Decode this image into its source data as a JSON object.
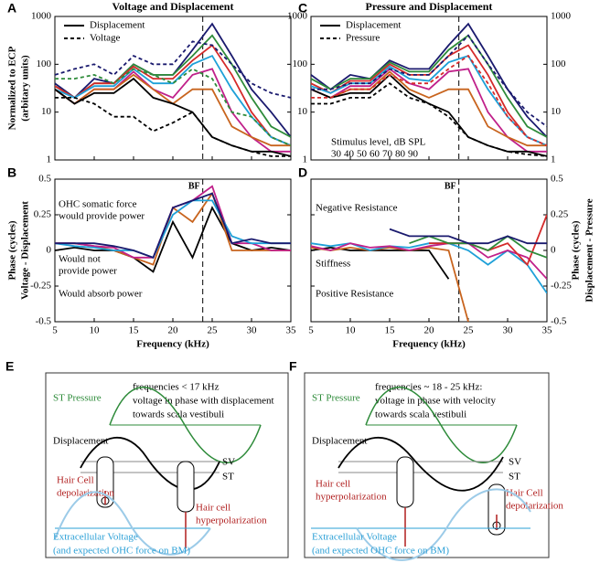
{
  "chart_data": [
    {
      "type": "line",
      "panel": "A",
      "title": "Voltage and Displacement",
      "y_label": [
        "Normalized to ECP",
        "(arbitary units)"
      ],
      "log_y": true,
      "y_axis_side": "left",
      "xlim": [
        5,
        35
      ],
      "ylim": [
        1,
        1000
      ],
      "xticks": [
        5,
        10,
        15,
        20,
        25,
        30,
        35
      ],
      "yticks": [
        1,
        10,
        100,
        1000
      ],
      "x": [
        5,
        7.5,
        10,
        12.5,
        15,
        17.5,
        20,
        22.5,
        25,
        27.5,
        30,
        32.5,
        35
      ],
      "bf": 23.8,
      "legend": [
        {
          "label": "Displacement",
          "dash": "solid"
        },
        {
          "label": "Voltage",
          "dash": "dashed"
        }
      ],
      "series": [
        {
          "color": "#1a1a6e",
          "dash": "solid",
          "values": [
            40,
            20,
            50,
            40,
            100,
            60,
            60,
            200,
            700,
            150,
            30,
            10,
            3
          ]
        },
        {
          "color": "#2e8b3a",
          "dash": "solid",
          "values": [
            35,
            20,
            40,
            40,
            100,
            60,
            60,
            150,
            400,
            100,
            20,
            5,
            3
          ]
        },
        {
          "color": "#d42a2a",
          "dash": "solid",
          "values": [
            35,
            20,
            40,
            40,
            90,
            50,
            50,
            120,
            250,
            60,
            10,
            3,
            2
          ]
        },
        {
          "color": "#1ea0d8",
          "dash": "solid",
          "values": [
            30,
            20,
            35,
            35,
            80,
            40,
            40,
            100,
            150,
            30,
            8,
            3,
            2
          ]
        },
        {
          "color": "#c0208a",
          "dash": "solid",
          "values": [
            30,
            15,
            30,
            30,
            70,
            30,
            20,
            60,
            80,
            10,
            3,
            1.5,
            1.5
          ]
        },
        {
          "color": "#c8641e",
          "dash": "solid",
          "values": [
            30,
            15,
            30,
            30,
            60,
            30,
            15,
            30,
            30,
            5,
            3,
            2,
            2
          ]
        },
        {
          "color": "#000000",
          "dash": "solid",
          "values": [
            30,
            15,
            25,
            25,
            50,
            20,
            15,
            10,
            3,
            2,
            1.5,
            1.5,
            1.2
          ]
        },
        {
          "color": "#1a1a6e",
          "dash": "dashed",
          "values": [
            60,
            80,
            100,
            60,
            150,
            100,
            100,
            300,
            250,
            100,
            40,
            25,
            20
          ]
        },
        {
          "color": "#2e8b3a",
          "dash": "dashed",
          "values": [
            50,
            50,
            60,
            40,
            80,
            60,
            40,
            80,
            50,
            10,
            8,
            3,
            2
          ]
        },
        {
          "color": "#000000",
          "dash": "dashed",
          "values": [
            20,
            20,
            15,
            8,
            8,
            4,
            6,
            10,
            3,
            2,
            1.5,
            1.2,
            1.2
          ]
        }
      ]
    },
    {
      "type": "line",
      "panel": "B",
      "y_label": [
        "Phase (cycles)",
        "Voltage - Displacement"
      ],
      "x_label": "Frequency (kHz)",
      "log_y": false,
      "y_axis_side": "left",
      "xlim": [
        5,
        35
      ],
      "ylim": [
        -0.5,
        0.5
      ],
      "xticks": [
        5,
        10,
        15,
        20,
        25,
        30,
        35
      ],
      "yticks": [
        -0.5,
        -0.25,
        0,
        0.25,
        0.5
      ],
      "x": [
        5,
        7.5,
        10,
        12.5,
        15,
        17.5,
        20,
        22.5,
        25,
        27.5,
        30,
        32.5,
        35
      ],
      "bf": 23.8,
      "bf_label": "BF",
      "annotations": [
        "OHC somatic force",
        "would provide power",
        "Would not",
        "provide power",
        "Would absorb power"
      ],
      "series": [
        {
          "color": "#000000",
          "dash": "solid",
          "values": [
            0,
            0.02,
            0,
            0,
            -0.05,
            -0.15,
            0.2,
            -0.05,
            0.3,
            0.05,
            0,
            0.02,
            0
          ]
        },
        {
          "color": "#c8641e",
          "dash": "solid",
          "values": [
            0.05,
            0.05,
            0.03,
            0,
            -0.05,
            -0.1,
            0.3,
            0.2,
            0.4,
            0,
            0,
            0,
            0
          ]
        },
        {
          "color": "#c0208a",
          "dash": "solid",
          "values": [
            0.05,
            0.05,
            0.03,
            0.02,
            -0.05,
            -0.05,
            0.3,
            0.35,
            0.45,
            0.05,
            0.05,
            0,
            0
          ]
        },
        {
          "color": "#1ea0d8",
          "dash": "solid",
          "values": [
            0.05,
            0.03,
            0.02,
            0,
            0,
            -0.05,
            0.25,
            0.35,
            0.35,
            0.1,
            0.05,
            0.05,
            0.05
          ]
        },
        {
          "color": "#1a1a6e",
          "dash": "solid",
          "values": [
            0.05,
            0.05,
            0.05,
            0.03,
            0,
            -0.05,
            0.3,
            0.35,
            0.4,
            0.05,
            0.08,
            0.05,
            0.05
          ]
        }
      ]
    },
    {
      "type": "line",
      "panel": "C",
      "title": "Pressure and Displacement",
      "log_y": true,
      "y_axis_side": "both",
      "xlim": [
        5,
        35
      ],
      "ylim": [
        1,
        1000
      ],
      "xticks": [
        5,
        10,
        15,
        20,
        25,
        30,
        35
      ],
      "yticks": [
        1,
        10,
        100,
        1000
      ],
      "x": [
        5,
        7.5,
        10,
        12.5,
        15,
        17.5,
        20,
        22.5,
        25,
        27.5,
        30,
        32.5,
        35
      ],
      "bf": 23.8,
      "legend": [
        {
          "label": "Displacement",
          "dash": "solid"
        },
        {
          "label": "Pressure",
          "dash": "dashed"
        }
      ],
      "level_title": "Stimulus level, dB SPL",
      "levels": [
        30,
        40,
        50,
        60,
        70,
        80,
        90
      ],
      "level_colors": [
        "#1a1a6e",
        "#2e8b3a",
        "#d42a2a",
        "#1ea0d8",
        "#c0208a",
        "#c8641e",
        "#000000"
      ],
      "series": [
        {
          "color": "#1a1a6e",
          "dash": "solid",
          "values": [
            60,
            30,
            60,
            50,
            120,
            80,
            80,
            250,
            700,
            150,
            30,
            8,
            3
          ]
        },
        {
          "color": "#2e8b3a",
          "dash": "solid",
          "values": [
            50,
            30,
            50,
            50,
            110,
            70,
            70,
            200,
            400,
            100,
            20,
            5,
            3
          ]
        },
        {
          "color": "#d42a2a",
          "dash": "solid",
          "values": [
            40,
            25,
            45,
            45,
            100,
            60,
            60,
            150,
            250,
            60,
            10,
            3,
            2
          ]
        },
        {
          "color": "#1ea0d8",
          "dash": "solid",
          "values": [
            35,
            25,
            40,
            40,
            90,
            50,
            45,
            110,
            150,
            30,
            8,
            3,
            2
          ]
        },
        {
          "color": "#c0208a",
          "dash": "solid",
          "values": [
            30,
            20,
            35,
            35,
            80,
            40,
            30,
            70,
            80,
            10,
            3,
            1.5,
            1.5
          ]
        },
        {
          "color": "#c8641e",
          "dash": "solid",
          "values": [
            30,
            20,
            30,
            30,
            70,
            30,
            20,
            30,
            30,
            5,
            3,
            2,
            2
          ]
        },
        {
          "color": "#000000",
          "dash": "solid",
          "values": [
            30,
            20,
            25,
            25,
            60,
            25,
            15,
            10,
            3,
            2,
            1.5,
            1.5,
            1.2
          ]
        },
        {
          "color": "#1a1a6e",
          "dash": "dashed",
          "values": [
            30,
            30,
            40,
            40,
            80,
            60,
            60,
            150,
            400,
            100,
            30,
            10,
            5
          ]
        },
        {
          "color": "#d42a2a",
          "dash": "dashed",
          "values": [
            20,
            20,
            30,
            30,
            60,
            40,
            40,
            80,
            150,
            40,
            8,
            3,
            2
          ]
        },
        {
          "color": "#000000",
          "dash": "dashed",
          "values": [
            15,
            15,
            20,
            20,
            40,
            20,
            15,
            8,
            3,
            2,
            1.5,
            1.3,
            1.2
          ]
        }
      ]
    },
    {
      "type": "line",
      "panel": "D",
      "y_label": [
        "Phase (cycles)",
        "Displacement - Pressure"
      ],
      "x_label": "Frequency (kHz)",
      "log_y": false,
      "y_axis_side": "right",
      "xlim": [
        5,
        35
      ],
      "ylim": [
        -0.5,
        0.5
      ],
      "xticks": [
        5,
        10,
        15,
        20,
        25,
        30,
        35
      ],
      "yticks": [
        -0.5,
        -0.25,
        0,
        0.25,
        0.5
      ],
      "x": [
        5,
        7.5,
        10,
        12.5,
        15,
        17.5,
        20,
        22.5,
        25,
        27.5,
        30,
        32.5,
        35
      ],
      "bf": 23.8,
      "bf_label": "BF",
      "annotations": [
        "Negative Resistance",
        "Stiffness",
        "Positive Resistance"
      ],
      "series": [
        {
          "color": "#000000",
          "dash": "solid",
          "values": [
            0,
            0.02,
            0,
            0,
            0,
            0,
            0,
            -0.2,
            null,
            null,
            null,
            null,
            null
          ]
        },
        {
          "color": "#c8641e",
          "dash": "solid",
          "values": [
            0.02,
            0,
            0.02,
            0,
            0.02,
            0,
            0.02,
            0,
            -0.5,
            null,
            null,
            null,
            null
          ]
        },
        {
          "color": "#1ea0d8",
          "dash": "solid",
          "values": [
            0.05,
            0.03,
            0.05,
            0,
            0.03,
            0.02,
            0.05,
            0.05,
            0,
            -0.1,
            0,
            -0.1,
            -0.3
          ]
        },
        {
          "color": "#c0208a",
          "dash": "solid",
          "values": [
            0.03,
            0,
            0.05,
            0.02,
            0.03,
            0,
            0.03,
            0.05,
            0.05,
            -0.05,
            0,
            -0.05,
            -0.2
          ]
        },
        {
          "color": "#d42a2a",
          "dash": "solid",
          "values": [
            null,
            null,
            null,
            null,
            null,
            null,
            0.05,
            0.05,
            0.05,
            0,
            0.05,
            -0.1,
            0.25
          ]
        },
        {
          "color": "#2e8b3a",
          "dash": "solid",
          "values": [
            null,
            null,
            null,
            null,
            null,
            0.05,
            0.1,
            0.05,
            0.05,
            0,
            0.1,
            0,
            -0.05
          ]
        },
        {
          "color": "#1a1a6e",
          "dash": "solid",
          "values": [
            null,
            null,
            null,
            null,
            0.15,
            0.1,
            0.1,
            0.1,
            0.05,
            0.05,
            0.1,
            0.05,
            0.05
          ]
        }
      ]
    }
  ],
  "diagrams": [
    {
      "panel": "E",
      "heading": [
        "frequencies < 17 kHz",
        "voltage in phase with displacement",
        "towards scala vestibuli"
      ],
      "st_pressure": "ST Pressure",
      "displacement": "Displacement",
      "sv": "SV",
      "st": "ST",
      "cell_left": [
        "Hair Cell",
        "depolarization"
      ],
      "cell_right": [
        "Hair cell",
        "hyperpolarization"
      ],
      "voltage": [
        "Extracellular Voltage",
        "(and expected OHC force on BM)"
      ]
    },
    {
      "panel": "F",
      "heading": [
        "frequencies  ~ 18 - 25 kHz:",
        "voltage in phase with velocity",
        "towards scala vestibuli"
      ],
      "st_pressure": "ST Pressure",
      "displacement": "Displacement",
      "sv": "SV",
      "st": "ST",
      "cell_left": [
        "Hair cell",
        "hyperpolarization"
      ],
      "cell_right": [
        "Hair Cell",
        "depolarization"
      ],
      "voltage": [
        "Extracellular Voltage",
        "(and expected OHC force on BM)"
      ]
    }
  ]
}
